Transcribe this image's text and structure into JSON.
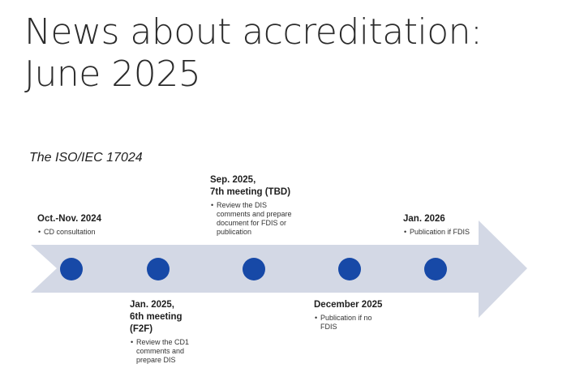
{
  "slide": {
    "title_line1": "News about accreditation:",
    "title_line2": "June 2025",
    "subtitle": "The ISO/IEC 17024"
  },
  "colors": {
    "arrow": "#d3d8e5",
    "milestone": "#1749a7"
  },
  "timeline": {
    "events": [
      {
        "label_lines": [
          "Oct.-Nov. 2024"
        ],
        "notes": [
          "CD consultation"
        ]
      },
      {
        "label_lines": [
          "Jan. 2025,",
          "6th meeting",
          "(F2F)"
        ],
        "notes": [
          "Review the CD1",
          "comments and",
          "prepare DIS"
        ]
      },
      {
        "label_lines": [
          "Sep. 2025,",
          "7th  meeting (TBD)"
        ],
        "notes": [
          "Review the DIS",
          "comments and prepare",
          "document for FDIS or",
          "publication"
        ]
      },
      {
        "label_lines": [
          "December 2025"
        ],
        "notes": [
          "Publication if no",
          "FDIS"
        ]
      },
      {
        "label_lines": [
          "Jan. 2026"
        ],
        "notes": [
          "Publication if FDIS"
        ]
      }
    ]
  }
}
